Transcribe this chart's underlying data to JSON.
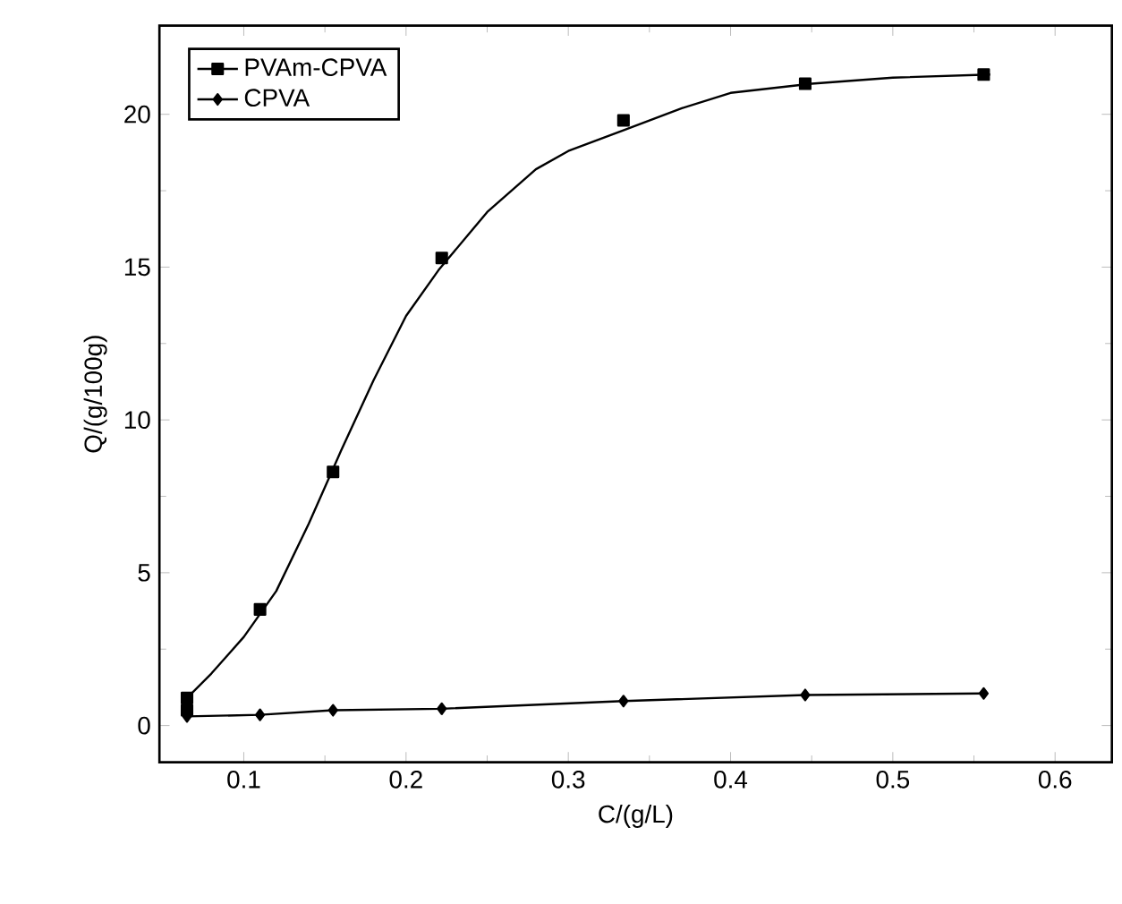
{
  "chart_data": {
    "type": "scatter",
    "xlabel": "C/(g/L)",
    "ylabel": "Q/(g/100g)",
    "xlim": [
      0.048,
      0.635
    ],
    "ylim": [
      -1.2,
      22.9
    ],
    "xticks": [
      0.1,
      0.2,
      0.3,
      0.4,
      0.5,
      0.6
    ],
    "yticks": [
      0,
      5,
      10,
      15,
      20
    ],
    "legend": "top left",
    "grid": false,
    "series": [
      {
        "name": "PVAm-CPVA",
        "marker": "square",
        "color": "#000000",
        "x": [
          0.065,
          0.065,
          0.11,
          0.155,
          0.222,
          0.334,
          0.446,
          0.556
        ],
        "values": [
          0.5,
          0.9,
          3.8,
          8.3,
          15.3,
          19.8,
          21.0,
          21.3
        ]
      },
      {
        "type": "line",
        "marker": "none",
        "color": "#000000",
        "x": [
          0.065,
          0.08,
          0.1,
          0.12,
          0.14,
          0.16,
          0.18,
          0.2,
          0.22,
          0.25,
          0.28,
          0.3,
          0.335,
          0.37,
          0.4,
          0.45,
          0.5,
          0.56
        ],
        "values": [
          0.9,
          1.7,
          2.9,
          4.4,
          6.6,
          9.0,
          11.3,
          13.4,
          14.9,
          16.8,
          18.2,
          18.8,
          19.5,
          20.2,
          20.7,
          21.0,
          21.2,
          21.3
        ]
      },
      {
        "name": "CPVA",
        "type": "line",
        "marker": "diamond",
        "color": "#000000",
        "x": [
          0.065,
          0.11,
          0.155,
          0.222,
          0.334,
          0.446,
          0.556
        ],
        "values": [
          0.3,
          0.35,
          0.5,
          0.55,
          0.8,
          1.0,
          1.05
        ]
      }
    ]
  }
}
